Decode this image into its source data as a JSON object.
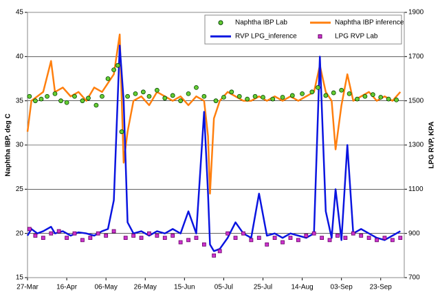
{
  "chart_data": {
    "type": "line",
    "ylabel": "Naphtha IBP, deg C",
    "y2label": "LPG RVP, KPA",
    "xlim": [
      0,
      192
    ],
    "xticks": [
      {
        "value": 0,
        "label": "27-Mar"
      },
      {
        "value": 20,
        "label": "16-Apr"
      },
      {
        "value": 40,
        "label": "06-May"
      },
      {
        "value": 60,
        "label": "26-May"
      },
      {
        "value": 80,
        "label": "15-Jun"
      },
      {
        "value": 100,
        "label": "05-Jul"
      },
      {
        "value": 120,
        "label": "25-Jul"
      },
      {
        "value": 140,
        "label": "14-Aug"
      },
      {
        "value": 160,
        "label": "03-Sep"
      },
      {
        "value": 180,
        "label": "23-Sep"
      }
    ],
    "ylim": [
      15,
      45
    ],
    "yticks": [
      15,
      20,
      25,
      30,
      35,
      40,
      45
    ],
    "y2lim": [
      700,
      1900
    ],
    "y2ticks": [
      700,
      900,
      1100,
      1300,
      1500,
      1700,
      1900
    ],
    "grid": true,
    "legend": "upper right",
    "series": [
      {
        "name": "Naphtha IBP inference",
        "color": "#ff7f0e",
        "style": "line",
        "x": [
          0,
          2,
          5,
          8,
          12,
          14,
          18,
          22,
          26,
          30,
          34,
          38,
          41,
          44,
          47,
          49,
          51,
          54,
          58,
          62,
          66,
          70,
          74,
          78,
          82,
          86,
          90,
          92,
          93,
          95,
          98,
          102,
          106,
          110,
          114,
          118,
          122,
          126,
          130,
          134,
          138,
          142,
          146,
          149,
          152,
          155,
          157,
          160,
          163,
          166,
          170,
          174,
          178,
          182,
          186,
          190
        ],
        "values": [
          31.5,
          35,
          35.5,
          36,
          39.5,
          36,
          36.5,
          35.5,
          36,
          35,
          36.5,
          36,
          37,
          38,
          42.5,
          28,
          31.5,
          35,
          35.5,
          34.5,
          36,
          35.5,
          35,
          35.5,
          34.5,
          35.5,
          35,
          31,
          24.5,
          33,
          35,
          36,
          35.5,
          35,
          35,
          35.5,
          35,
          35.5,
          35,
          35.5,
          35,
          35.5,
          36,
          39,
          36,
          35,
          29.5,
          34.5,
          38,
          35,
          35.5,
          36,
          35,
          35.5,
          35,
          36
        ]
      },
      {
        "name": "RVP LPG_inference",
        "color": "#0a14e0",
        "style": "line",
        "axis": "y2",
        "x": [
          0,
          2,
          5,
          8,
          12,
          14,
          18,
          22,
          26,
          30,
          34,
          38,
          41,
          44,
          47,
          49,
          51,
          54,
          58,
          62,
          66,
          70,
          74,
          78,
          82,
          86,
          90,
          92,
          93,
          95,
          98,
          102,
          106,
          110,
          114,
          118,
          122,
          126,
          130,
          134,
          138,
          142,
          146,
          149,
          152,
          155,
          157,
          160,
          163,
          166,
          170,
          174,
          178,
          182,
          186,
          190
        ],
        "values": [
          890,
          920,
          900,
          910,
          930,
          900,
          910,
          890,
          905,
          900,
          890,
          910,
          920,
          1050,
          1750,
          1500,
          950,
          900,
          910,
          890,
          910,
          900,
          920,
          900,
          1000,
          900,
          1450,
          1080,
          850,
          820,
          830,
          880,
          950,
          900,
          880,
          1080,
          890,
          900,
          880,
          900,
          890,
          880,
          900,
          1700,
          1000,
          880,
          1100,
          870,
          1300,
          900,
          920,
          900,
          880,
          870,
          890,
          910
        ]
      },
      {
        "name": "Naphtha IBP Lab",
        "color": "#66cc33",
        "style": "points",
        "x": [
          1,
          4,
          7,
          10,
          14,
          17,
          20,
          24,
          28,
          31,
          35,
          38,
          41,
          44,
          46,
          48,
          51,
          55,
          59,
          62,
          66,
          70,
          74,
          78,
          82,
          86,
          90,
          96,
          100,
          104,
          108,
          112,
          116,
          120,
          125,
          130,
          135,
          140,
          145,
          148,
          152,
          156,
          160,
          164,
          168,
          172,
          176,
          180,
          184,
          188
        ],
        "values": [
          35.5,
          35,
          35.2,
          35.5,
          35.8,
          35,
          34.8,
          35.5,
          35,
          35.3,
          34.5,
          35.5,
          37.5,
          38.5,
          39,
          31.5,
          35.5,
          35.8,
          36,
          35.5,
          36.2,
          35.3,
          35.6,
          35,
          35.8,
          36.5,
          35.5,
          35,
          35.4,
          36,
          35.5,
          35.2,
          35.5,
          35.4,
          35.2,
          35.4,
          35.6,
          35.8,
          36,
          36.5,
          35.6,
          35.9,
          36.2,
          35.8,
          35.2,
          35.5,
          35.7,
          35.4,
          35.2,
          35.1
        ]
      },
      {
        "name": "LPG RVP Lab",
        "color": "#cc33cc",
        "style": "squares",
        "axis": "y2",
        "x": [
          1,
          4,
          8,
          12,
          16,
          20,
          24,
          28,
          32,
          36,
          40,
          44,
          50,
          54,
          58,
          62,
          66,
          70,
          74,
          78,
          82,
          86,
          90,
          95,
          98,
          102,
          106,
          110,
          114,
          118,
          122,
          126,
          130,
          134,
          138,
          142,
          146,
          150,
          154,
          158,
          162,
          166,
          170,
          174,
          178,
          182,
          186,
          190
        ],
        "values": [
          920,
          890,
          880,
          900,
          910,
          880,
          900,
          870,
          880,
          900,
          890,
          910,
          880,
          890,
          880,
          900,
          890,
          880,
          890,
          860,
          870,
          880,
          850,
          800,
          820,
          900,
          880,
          900,
          870,
          880,
          850,
          880,
          860,
          880,
          870,
          890,
          900,
          880,
          870,
          890,
          880,
          900,
          890,
          880,
          870,
          880,
          870,
          880
        ]
      }
    ]
  }
}
